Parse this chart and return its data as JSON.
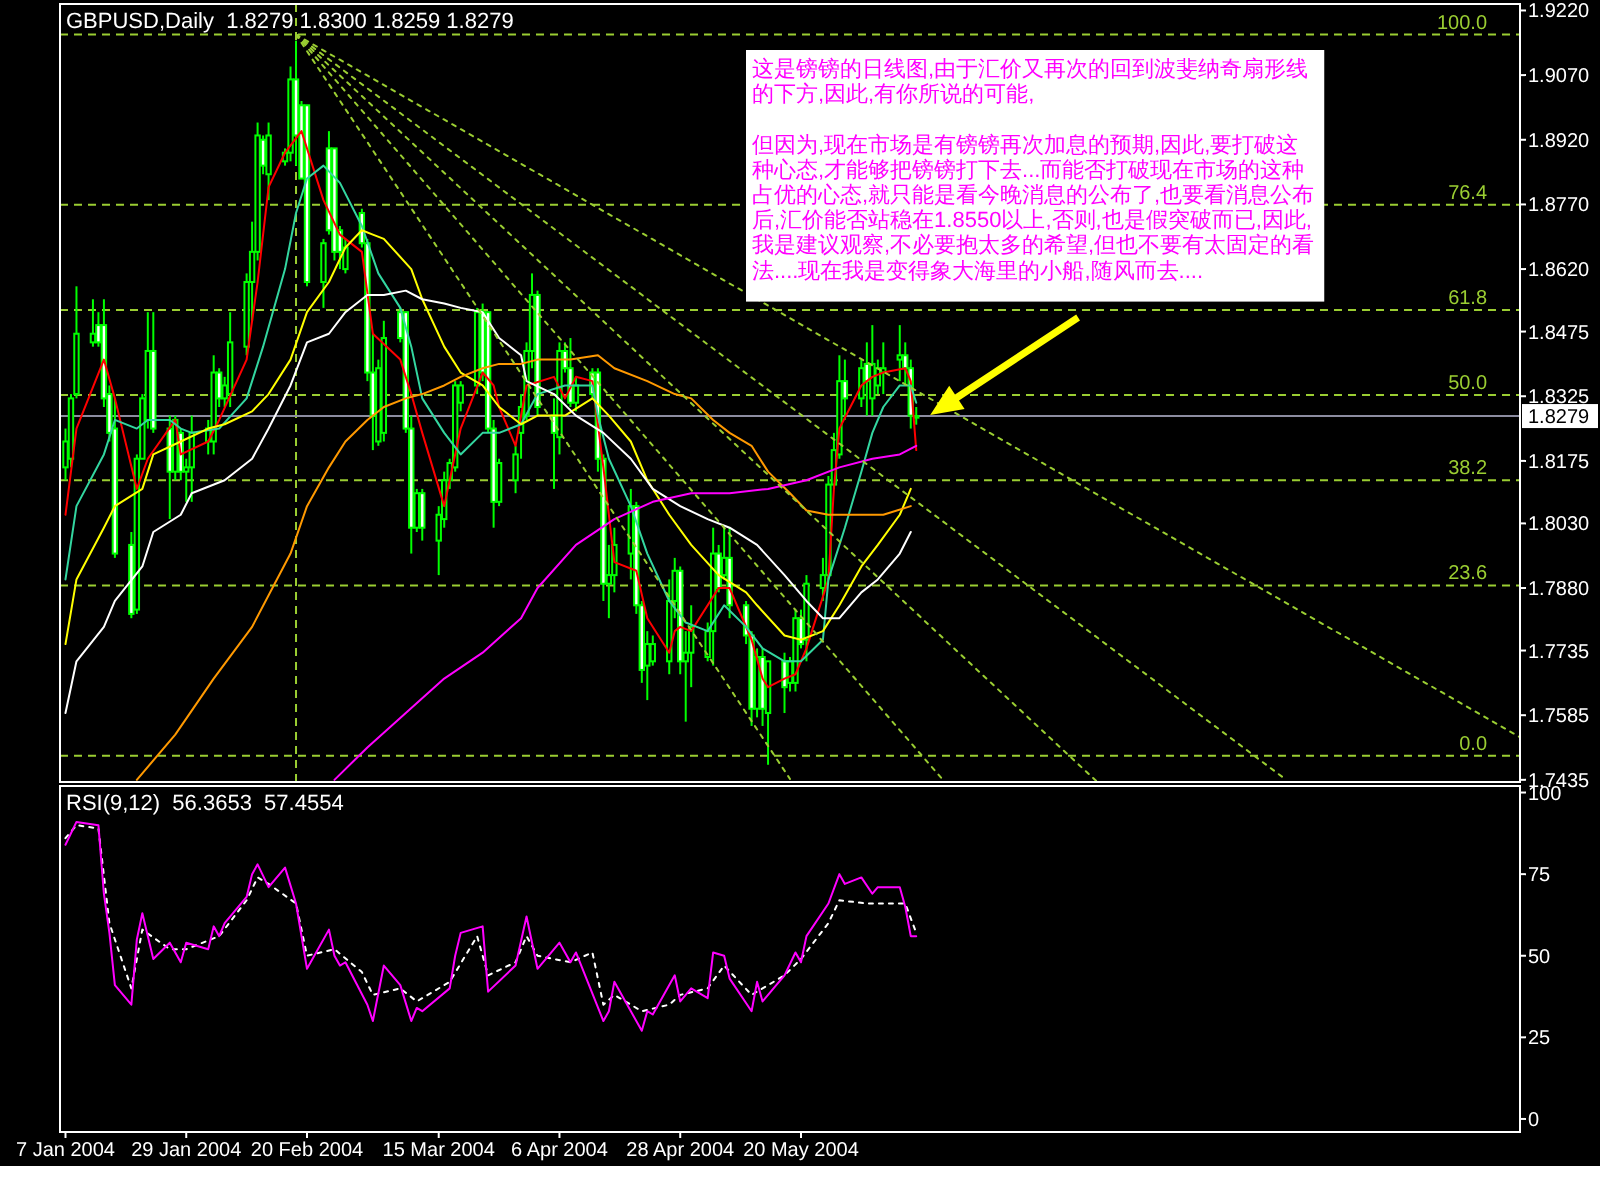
{
  "chart_data": [
    {
      "type": "candlestick",
      "title": "GBPUSD,Daily  1.8279 1.8300 1.8259 1.8279",
      "color": "#00ff00",
      "x": [
        "2004-01-07",
        "2004-01-08",
        "2004-01-09",
        "2004-01-12",
        "2004-01-13",
        "2004-01-14",
        "2004-01-15",
        "2004-01-16",
        "2004-01-19",
        "2004-01-20",
        "2004-01-21",
        "2004-01-22",
        "2004-01-23",
        "2004-01-26",
        "2004-01-27",
        "2004-01-28",
        "2004-01-29",
        "2004-01-30",
        "2004-02-02",
        "2004-02-03",
        "2004-02-04",
        "2004-02-05",
        "2004-02-06",
        "2004-02-09",
        "2004-02-10",
        "2004-02-11",
        "2004-02-12",
        "2004-02-13",
        "2004-02-16",
        "2004-02-17",
        "2004-02-18",
        "2004-02-19",
        "2004-02-20",
        "2004-02-23",
        "2004-02-24",
        "2004-02-25",
        "2004-02-26",
        "2004-02-27",
        "2004-03-01",
        "2004-03-02",
        "2004-03-03",
        "2004-03-04",
        "2004-03-05",
        "2004-03-08",
        "2004-03-09",
        "2004-03-10",
        "2004-03-11",
        "2004-03-12",
        "2004-03-15",
        "2004-03-16",
        "2004-03-17",
        "2004-03-18",
        "2004-03-19",
        "2004-03-22",
        "2004-03-23",
        "2004-03-24",
        "2004-03-25",
        "2004-03-26",
        "2004-03-29",
        "2004-03-30",
        "2004-03-31",
        "2004-04-01",
        "2004-04-02",
        "2004-04-05",
        "2004-04-06",
        "2004-04-07",
        "2004-04-08",
        "2004-04-09",
        "2004-04-12",
        "2004-04-13",
        "2004-04-14",
        "2004-04-15",
        "2004-04-16",
        "2004-04-19",
        "2004-04-20",
        "2004-04-21",
        "2004-04-22",
        "2004-04-23",
        "2004-04-26",
        "2004-04-27",
        "2004-04-28",
        "2004-04-29",
        "2004-04-30",
        "2004-05-03",
        "2004-05-04",
        "2004-05-05",
        "2004-05-06",
        "2004-05-07",
        "2004-05-10",
        "2004-05-11",
        "2004-05-12",
        "2004-05-13",
        "2004-05-14",
        "2004-05-17",
        "2004-05-18",
        "2004-05-19",
        "2004-05-20",
        "2004-05-21",
        "2004-05-24",
        "2004-05-25",
        "2004-05-26",
        "2004-05-27",
        "2004-05-28",
        "2004-05-31",
        "2004-06-01",
        "2004-06-02",
        "2004-06-03",
        "2004-06-04",
        "2004-06-07",
        "2004-06-08",
        "2004-06-09",
        "2004-06-10"
      ],
      "ohlc": [
        [
          1.816,
          1.825,
          1.813,
          1.822
        ],
        [
          1.818,
          1.833,
          1.816,
          1.832
        ],
        [
          1.833,
          1.858,
          1.832,
          1.847
        ],
        [
          1.845,
          1.855,
          1.844,
          1.847
        ],
        [
          1.849,
          1.852,
          1.844,
          1.845
        ],
        [
          1.849,
          1.855,
          1.83,
          1.832
        ],
        [
          1.833,
          1.835,
          1.822,
          1.824
        ],
        [
          1.825,
          1.832,
          1.795,
          1.796
        ],
        [
          1.798,
          1.801,
          1.781,
          1.782
        ],
        [
          1.783,
          1.819,
          1.782,
          1.818
        ],
        [
          1.818,
          1.833,
          1.818,
          1.832
        ],
        [
          1.827,
          1.852,
          1.825,
          1.843
        ],
        [
          1.843,
          1.852,
          1.824,
          1.825
        ],
        [
          1.825,
          1.828,
          1.804,
          1.815
        ],
        [
          1.815,
          1.828,
          1.813,
          1.827
        ],
        [
          1.824,
          1.825,
          1.813,
          1.815
        ],
        [
          1.815,
          1.818,
          1.808,
          1.816
        ],
        [
          1.816,
          1.828,
          1.808,
          1.824
        ],
        [
          1.822,
          1.827,
          1.819,
          1.825
        ],
        [
          1.822,
          1.842,
          1.819,
          1.838
        ],
        [
          1.838,
          1.839,
          1.83,
          1.832
        ],
        [
          1.832,
          1.837,
          1.83,
          1.835
        ],
        [
          1.833,
          1.852,
          1.83,
          1.845
        ],
        [
          1.844,
          1.861,
          1.842,
          1.859
        ],
        [
          1.859,
          1.873,
          1.85,
          1.866
        ],
        [
          1.866,
          1.896,
          1.864,
          1.893
        ],
        [
          1.892,
          1.893,
          1.884,
          1.886
        ],
        [
          1.884,
          1.896,
          1.878,
          1.893
        ],
        [
          1.887,
          1.89,
          1.886,
          1.889
        ],
        [
          1.889,
          1.909,
          1.887,
          1.906
        ],
        [
          1.906,
          1.915,
          1.886,
          1.893
        ],
        [
          1.9,
          1.901,
          1.883,
          1.883
        ],
        [
          1.9,
          1.9,
          1.858,
          1.859
        ],
        [
          1.859,
          1.869,
          1.853,
          1.868
        ],
        [
          1.89,
          1.894,
          1.87,
          1.871
        ],
        [
          1.89,
          1.89,
          1.864,
          1.866
        ],
        [
          1.871,
          1.872,
          1.862,
          1.866
        ],
        [
          1.862,
          1.869,
          1.861,
          1.867
        ],
        [
          1.875,
          1.876,
          1.867,
          1.868
        ],
        [
          1.868,
          1.869,
          1.836,
          1.838
        ],
        [
          1.838,
          1.847,
          1.82,
          1.828
        ],
        [
          1.822,
          1.841,
          1.821,
          1.839
        ],
        [
          1.824,
          1.85,
          1.822,
          1.846
        ],
        [
          1.852,
          1.853,
          1.845,
          1.846
        ],
        [
          1.852,
          1.852,
          1.824,
          1.825
        ],
        [
          1.825,
          1.828,
          1.796,
          1.802
        ],
        [
          1.802,
          1.811,
          1.801,
          1.81
        ],
        [
          1.81,
          1.811,
          1.799,
          1.802
        ],
        [
          1.799,
          1.807,
          1.791,
          1.805
        ],
        [
          1.804,
          1.815,
          1.802,
          1.813
        ],
        [
          1.813,
          1.818,
          1.811,
          1.817
        ],
        [
          1.816,
          1.836,
          1.815,
          1.835
        ],
        [
          1.831,
          1.836,
          1.829,
          1.835
        ],
        [
          1.835,
          1.853,
          1.833,
          1.852
        ],
        [
          1.852,
          1.854,
          1.836,
          1.838
        ],
        [
          1.852,
          1.852,
          1.824,
          1.825
        ],
        [
          1.825,
          1.827,
          1.802,
          1.808
        ],
        [
          1.808,
          1.818,
          1.807,
          1.817
        ],
        [
          1.813,
          1.821,
          1.81,
          1.819
        ],
        [
          1.824,
          1.833,
          1.818,
          1.83
        ],
        [
          1.828,
          1.845,
          1.827,
          1.843
        ],
        [
          1.843,
          1.861,
          1.839,
          1.856
        ],
        [
          1.856,
          1.857,
          1.828,
          1.83
        ],
        [
          1.828,
          1.832,
          1.811,
          1.824
        ],
        [
          1.823,
          1.845,
          1.819,
          1.843
        ],
        [
          1.843,
          1.845,
          1.838,
          1.839
        ],
        [
          1.839,
          1.846,
          1.83,
          1.831
        ],
        [
          1.831,
          1.837,
          1.829,
          1.835
        ],
        [
          1.838,
          1.839,
          1.832,
          1.833
        ],
        [
          1.838,
          1.839,
          1.815,
          1.818
        ],
        [
          1.818,
          1.819,
          1.785,
          1.789
        ],
        [
          1.789,
          1.798,
          1.781,
          1.791
        ],
        [
          1.791,
          1.802,
          1.787,
          1.798
        ],
        [
          1.796,
          1.811,
          1.79,
          1.807
        ],
        [
          1.807,
          1.808,
          1.782,
          1.784
        ],
        [
          1.784,
          1.785,
          1.766,
          1.769
        ],
        [
          1.77,
          1.778,
          1.762,
          1.775
        ],
        [
          1.771,
          1.777,
          1.77,
          1.775
        ],
        [
          1.771,
          1.79,
          1.768,
          1.785
        ],
        [
          1.785,
          1.795,
          1.781,
          1.792
        ],
        [
          1.792,
          1.793,
          1.768,
          1.771
        ],
        [
          1.771,
          1.778,
          1.757,
          1.773
        ],
        [
          1.773,
          1.784,
          1.765,
          1.779
        ],
        [
          1.772,
          1.78,
          1.771,
          1.778
        ],
        [
          1.778,
          1.802,
          1.77,
          1.796
        ],
        [
          1.796,
          1.798,
          1.787,
          1.788
        ],
        [
          1.791,
          1.802,
          1.79,
          1.795
        ],
        [
          1.795,
          1.802,
          1.781,
          1.784
        ],
        [
          1.784,
          1.785,
          1.775,
          1.777
        ],
        [
          1.777,
          1.778,
          1.756,
          1.76
        ],
        [
          1.76,
          1.774,
          1.758,
          1.772
        ],
        [
          1.772,
          1.774,
          1.756,
          1.76
        ],
        [
          1.759,
          1.771,
          1.747,
          1.771
        ],
        [
          1.771,
          1.773,
          1.759,
          1.765
        ],
        [
          1.766,
          1.772,
          1.764,
          1.771
        ],
        [
          1.766,
          1.783,
          1.764,
          1.781
        ],
        [
          1.781,
          1.783,
          1.774,
          1.775
        ],
        [
          1.776,
          1.791,
          1.771,
          1.789
        ],
        [
          1.788,
          1.795,
          1.785,
          1.791
        ],
        [
          1.791,
          1.814,
          1.79,
          1.812
        ],
        [
          1.812,
          1.824,
          1.811,
          1.82
        ],
        [
          1.819,
          1.842,
          1.818,
          1.836
        ],
        [
          1.836,
          1.841,
          1.827,
          1.832
        ],
        [
          1.832,
          1.841,
          1.83,
          1.839
        ],
        [
          1.84,
          1.845,
          1.828,
          1.836
        ],
        [
          1.832,
          1.849,
          1.828,
          1.84
        ],
        [
          1.835,
          1.841,
          1.833,
          1.839
        ],
        [
          1.838,
          1.845,
          1.833,
          1.839
        ],
        [
          1.841,
          1.849,
          1.836,
          1.842
        ],
        [
          1.842,
          1.845,
          1.835,
          1.839
        ],
        [
          1.839,
          1.841,
          1.825,
          1.828
        ],
        [
          1.8279,
          1.83,
          1.8259,
          1.8279
        ]
      ],
      "series": [
        {
          "type": "line",
          "color": "#ff0000",
          "x": [
            "2004-01-07",
            "2004-01-09",
            "2004-01-14",
            "2004-01-16",
            "2004-01-20",
            "2004-01-22",
            "2004-01-27",
            "2004-01-28",
            "2004-02-02",
            "2004-02-04",
            "2004-02-09",
            "2004-02-11",
            "2004-02-13",
            "2004-02-16",
            "2004-02-19",
            "2004-02-23",
            "2004-02-26",
            "2004-03-01",
            "2004-03-03",
            "2004-03-08",
            "2004-03-10",
            "2004-03-12",
            "2004-03-16",
            "2004-03-19",
            "2004-03-23",
            "2004-03-25",
            "2004-03-26",
            "2004-03-29",
            "2004-03-31",
            "2004-04-05",
            "2004-04-07",
            "2004-04-09",
            "2004-04-12",
            "2004-04-14",
            "2004-04-16",
            "2004-04-20",
            "2004-04-22",
            "2004-04-26",
            "2004-04-27",
            "2004-04-28",
            "2004-04-30",
            "2004-05-05",
            "2004-05-07",
            "2004-05-11",
            "2004-05-13",
            "2004-05-14",
            "2004-05-17",
            "2004-05-19",
            "2004-05-21",
            "2004-05-25",
            "2004-05-26",
            "2004-05-27",
            "2004-05-31",
            "2004-06-02",
            "2004-06-04",
            "2004-06-08",
            "2004-06-09",
            "2004-06-10"
          ],
          "values": [
            1.805,
            1.825,
            1.841,
            1.832,
            1.811,
            1.818,
            1.827,
            1.819,
            1.822,
            1.827,
            1.841,
            1.859,
            1.881,
            1.889,
            1.894,
            1.878,
            1.87,
            1.866,
            1.847,
            1.841,
            1.833,
            1.824,
            1.807,
            1.825,
            1.838,
            1.835,
            1.83,
            1.821,
            1.835,
            1.837,
            1.832,
            1.837,
            1.836,
            1.816,
            1.794,
            1.792,
            1.781,
            1.773,
            1.778,
            1.779,
            1.778,
            1.788,
            1.788,
            1.776,
            1.767,
            1.765,
            1.767,
            1.768,
            1.774,
            1.79,
            1.811,
            1.825,
            1.835,
            1.837,
            1.838,
            1.839,
            1.836,
            1.82
          ]
        },
        {
          "type": "line",
          "color": "#33d6a0",
          "x": [
            "2004-01-07",
            "2004-01-09",
            "2004-01-14",
            "2004-01-16",
            "2004-01-20",
            "2004-01-22",
            "2004-01-26",
            "2004-01-28",
            "2004-01-30",
            "2004-02-04",
            "2004-02-09",
            "2004-02-12",
            "2004-02-16",
            "2004-02-18",
            "2004-02-20",
            "2004-02-23",
            "2004-02-26",
            "2004-03-01",
            "2004-03-04",
            "2004-03-08",
            "2004-03-10",
            "2004-03-12",
            "2004-03-16",
            "2004-03-19",
            "2004-03-23",
            "2004-03-26",
            "2004-03-30",
            "2004-04-02",
            "2004-04-07",
            "2004-04-12",
            "2004-04-13",
            "2004-04-15",
            "2004-04-19",
            "2004-04-22",
            "2004-04-26",
            "2004-04-29",
            "2004-05-03",
            "2004-05-06",
            "2004-05-10",
            "2004-05-13",
            "2004-05-17",
            "2004-05-20",
            "2004-05-24",
            "2004-05-25",
            "2004-05-28",
            "2004-05-31",
            "2004-06-02",
            "2004-06-04",
            "2004-06-07",
            "2004-06-09",
            "2004-06-10"
          ],
          "values": [
            1.79,
            1.807,
            1.819,
            1.827,
            1.825,
            1.827,
            1.827,
            1.825,
            1.824,
            1.825,
            1.832,
            1.844,
            1.862,
            1.875,
            1.883,
            1.886,
            1.882,
            1.872,
            1.861,
            1.853,
            1.844,
            1.832,
            1.824,
            1.819,
            1.824,
            1.824,
            1.826,
            1.833,
            1.835,
            1.835,
            1.828,
            1.818,
            1.807,
            1.796,
            1.785,
            1.78,
            1.778,
            1.784,
            1.779,
            1.774,
            1.771,
            1.771,
            1.776,
            1.79,
            1.802,
            1.815,
            1.824,
            1.83,
            1.835,
            1.835,
            1.831
          ]
        },
        {
          "type": "line",
          "color": "#ffff00",
          "x": [
            "2004-01-07",
            "2004-01-09",
            "2004-01-14",
            "2004-01-16",
            "2004-01-21",
            "2004-01-23",
            "2004-01-28",
            "2004-02-02",
            "2004-02-05",
            "2004-02-10",
            "2004-02-13",
            "2004-02-17",
            "2004-02-20",
            "2004-02-24",
            "2004-02-27",
            "2004-03-01",
            "2004-03-03",
            "2004-03-05",
            "2004-03-10",
            "2004-03-12",
            "2004-03-16",
            "2004-03-19",
            "2004-03-23",
            "2004-03-26",
            "2004-03-30",
            "2004-04-02",
            "2004-04-07",
            "2004-04-12",
            "2004-04-15",
            "2004-04-19",
            "2004-04-22",
            "2004-04-26",
            "2004-04-30",
            "2004-05-05",
            "2004-05-10",
            "2004-05-12",
            "2004-05-17",
            "2004-05-20",
            "2004-05-24",
            "2004-05-27",
            "2004-05-31",
            "2004-06-03",
            "2004-06-07",
            "2004-06-09"
          ],
          "values": [
            1.775,
            1.79,
            1.802,
            1.807,
            1.811,
            1.819,
            1.822,
            1.825,
            1.826,
            1.829,
            1.833,
            1.841,
            1.852,
            1.859,
            1.867,
            1.871,
            1.87,
            1.869,
            1.862,
            1.855,
            1.844,
            1.838,
            1.835,
            1.83,
            1.826,
            1.828,
            1.828,
            1.832,
            1.828,
            1.822,
            1.813,
            1.805,
            1.798,
            1.791,
            1.787,
            1.784,
            1.777,
            1.776,
            1.778,
            1.784,
            1.793,
            1.798,
            1.805,
            1.811
          ]
        },
        {
          "type": "line",
          "color": "#ffffff",
          "x": [
            "2004-01-07",
            "2004-01-09",
            "2004-01-14",
            "2004-01-16",
            "2004-01-21",
            "2004-01-23",
            "2004-01-28",
            "2004-01-30",
            "2004-02-05",
            "2004-02-10",
            "2004-02-13",
            "2004-02-17",
            "2004-02-20",
            "2004-02-24",
            "2004-02-27",
            "2004-03-02",
            "2004-03-05",
            "2004-03-09",
            "2004-03-12",
            "2004-03-16",
            "2004-03-19",
            "2004-03-23",
            "2004-03-26",
            "2004-03-30",
            "2004-03-31",
            "2004-04-05",
            "2004-04-09",
            "2004-04-14",
            "2004-04-19",
            "2004-04-23",
            "2004-04-28",
            "2004-05-03",
            "2004-05-07",
            "2004-05-12",
            "2004-05-17",
            "2004-05-21",
            "2004-05-24",
            "2004-05-27",
            "2004-05-31",
            "2004-06-03",
            "2004-06-07",
            "2004-06-09"
          ],
          "values": [
            1.759,
            1.771,
            1.779,
            1.785,
            1.793,
            1.801,
            1.805,
            1.81,
            1.813,
            1.818,
            1.825,
            1.835,
            1.845,
            1.847,
            1.852,
            1.856,
            1.856,
            1.857,
            1.855,
            1.854,
            1.853,
            1.852,
            1.846,
            1.842,
            1.836,
            1.833,
            1.828,
            1.824,
            1.818,
            1.811,
            1.807,
            1.804,
            1.802,
            1.798,
            1.791,
            1.785,
            1.781,
            1.781,
            1.787,
            1.79,
            1.796,
            1.801
          ]
        },
        {
          "type": "line",
          "color": "#ff9900",
          "x": [
            "2004-01-20",
            "2004-01-27",
            "2004-02-03",
            "2004-02-10",
            "2004-02-17",
            "2004-02-20",
            "2004-02-24",
            "2004-02-27",
            "2004-03-02",
            "2004-03-05",
            "2004-03-09",
            "2004-03-12",
            "2004-03-16",
            "2004-03-19",
            "2004-03-23",
            "2004-03-26",
            "2004-03-30",
            "2004-04-02",
            "2004-04-08",
            "2004-04-13",
            "2004-04-16",
            "2004-04-22",
            "2004-04-27",
            "2004-04-30",
            "2004-05-04",
            "2004-05-07",
            "2004-05-11",
            "2004-05-14",
            "2004-05-18",
            "2004-05-21",
            "2004-05-25",
            "2004-05-28",
            "2004-06-01",
            "2004-06-04",
            "2004-06-09"
          ],
          "values": [
            1.7435,
            1.754,
            1.767,
            1.779,
            1.796,
            1.807,
            1.816,
            1.822,
            1.827,
            1.83,
            1.832,
            1.833,
            1.835,
            1.837,
            1.839,
            1.84,
            1.84,
            1.841,
            1.841,
            1.842,
            1.839,
            1.836,
            1.833,
            1.832,
            1.827,
            1.824,
            1.821,
            1.815,
            1.81,
            1.806,
            1.805,
            1.805,
            1.805,
            1.805,
            1.807
          ]
        },
        {
          "type": "line",
          "color": "#ff00ff",
          "x": [
            "2004-02-25",
            "2004-03-02",
            "2004-03-09",
            "2004-03-16",
            "2004-03-23",
            "2004-03-30",
            "2004-04-02",
            "2004-04-09",
            "2004-04-16",
            "2004-04-23",
            "2004-04-30",
            "2004-05-07",
            "2004-05-14",
            "2004-05-21",
            "2004-05-27",
            "2004-06-02",
            "2004-06-07",
            "2004-06-10"
          ],
          "values": [
            1.7435,
            1.751,
            1.759,
            1.767,
            1.773,
            1.781,
            1.788,
            1.798,
            1.804,
            1.808,
            1.81,
            1.81,
            1.811,
            1.813,
            1.816,
            1.818,
            1.819,
            1.821
          ]
        },
        {
          "type": "line",
          "color": "#9acd32",
          "line_style": "dotted",
          "x": [
            "2004-02-18",
            "2004-05-18"
          ],
          "values": [
            1.9164,
            1.7437
          ]
        },
        {
          "type": "line",
          "color": "#9acd32",
          "line_style": "dotted",
          "x": [
            "2004-02-18",
            "2004-06-15"
          ],
          "values": [
            1.9164,
            1.7433
          ]
        },
        {
          "type": "line",
          "color": "#9acd32",
          "line_style": "dotted",
          "x": [
            "2004-02-18",
            "2004-07-13"
          ],
          "values": [
            1.9164,
            1.743
          ]
        },
        {
          "type": "line",
          "color": "#9acd32",
          "line_style": "dotted",
          "x": [
            "2004-02-18",
            "2004-08-16"
          ],
          "values": [
            1.9164,
            1.7439
          ]
        },
        {
          "type": "line",
          "color": "#9acd32",
          "line_style": "dotted",
          "x": [
            "2004-02-18",
            "2004-09-28"
          ],
          "values": [
            1.9164,
            1.7534
          ]
        }
      ],
      "xlim": [
        "2004-01-06",
        "2004-09-28"
      ],
      "ylim": [
        1.743,
        1.9235
      ],
      "yticks": [
        {
          "value": 1.922,
          "label": "1.9220"
        },
        {
          "value": 1.907,
          "label": "1.9070"
        },
        {
          "value": 1.892,
          "label": "1.8920"
        },
        {
          "value": 1.877,
          "label": "1.8770"
        },
        {
          "value": 1.862,
          "label": "1.8620"
        },
        {
          "value": 1.8475,
          "label": "1.8475"
        },
        {
          "value": 1.8325,
          "label": "1.8325"
        },
        {
          "value": 1.8175,
          "label": "1.8175"
        },
        {
          "value": 1.803,
          "label": "1.8030"
        },
        {
          "value": 1.788,
          "label": "1.7880"
        },
        {
          "value": 1.7735,
          "label": "1.7735"
        },
        {
          "value": 1.7585,
          "label": "1.7585"
        },
        {
          "value": 1.7435,
          "label": "1.7435"
        }
      ],
      "tick_labels": "y",
      "ref_lines": [
        {
          "axis": "y",
          "value": 1.9164,
          "color": "#9acd32",
          "line_style": "dashed"
        },
        {
          "axis": "y",
          "value": 1.8769,
          "color": "#9acd32",
          "line_style": "dashed"
        },
        {
          "axis": "y",
          "value": 1.8525,
          "color": "#9acd32",
          "line_style": "dashed"
        },
        {
          "axis": "y",
          "value": 1.8328,
          "color": "#9acd32",
          "line_style": "dashed"
        },
        {
          "axis": "y",
          "value": 1.813,
          "color": "#9acd32",
          "line_style": "dashed"
        },
        {
          "axis": "y",
          "value": 1.7886,
          "color": "#9acd32",
          "line_style": "dashed"
        },
        {
          "axis": "y",
          "value": 1.7491,
          "color": "#9acd32",
          "line_style": "dashed"
        },
        {
          "axis": "x",
          "value": "2004-02-18",
          "color": "#9acd32",
          "line_style": "dashed"
        },
        {
          "axis": "y",
          "value": 1.8279,
          "label": "1.8279",
          "color": "#8c8ca0",
          "line_style": "solid"
        }
      ],
      "annotations": [
        "这是镑镑的日线图,由于汇价又再次的回到波斐纳奇扇形线的下方,因此,有你所说的可能,",
        "但因为,现在市场是有镑镑再次加息的预期,因此,要打破这种心态,才能够把镑镑打下去...而能否打破现在市场的这种占优的心态,就只能是看今晚消息的公布了,也要看消息公布后,汇价能否站稳在1.8550以上,否则,也是假突破而已,因此,我是建议观察,不必要抱太多的希望,但也不要有太固定的看法....现在我是变得象大海里的小船,随风而去....",
        {
          "text": "100.0",
          "x": "2004-09-22",
          "y": 1.9164
        },
        {
          "text": "76.4",
          "x": "2004-09-22",
          "y": 1.8769
        },
        {
          "text": "61.8",
          "x": "2004-09-22",
          "y": 1.8525
        },
        {
          "text": "50.0",
          "x": "2004-09-22",
          "y": 1.8328
        },
        {
          "text": "38.2",
          "x": "2004-09-22",
          "y": 1.813
        },
        {
          "text": "23.6",
          "x": "2004-09-22",
          "y": 1.7886
        },
        {
          "text": "0.0",
          "x": "2004-09-22",
          "y": 1.7491
        }
      ]
    },
    {
      "type": "line",
      "title": "RSI(9,12)  56.3653  57.4554",
      "series": [
        {
          "color": "#ffffff",
          "line_style": "dotted",
          "x": [
            "2004-01-07",
            "2004-01-09",
            "2004-01-13",
            "2004-01-15",
            "2004-01-19",
            "2004-01-21",
            "2004-01-26",
            "2004-01-29",
            "2004-02-04",
            "2004-02-09",
            "2004-02-11",
            "2004-02-13",
            "2004-02-18",
            "2004-02-20",
            "2004-02-25",
            "2004-03-01",
            "2004-03-03",
            "2004-03-08",
            "2004-03-11",
            "2004-03-17",
            "2004-03-22",
            "2004-03-24",
            "2004-03-29",
            "2004-03-31",
            "2004-04-02",
            "2004-04-08",
            "2004-04-12",
            "2004-04-14",
            "2004-04-16",
            "2004-04-21",
            "2004-04-26",
            "2004-04-28",
            "2004-05-03",
            "2004-05-06",
            "2004-05-11",
            "2004-05-13",
            "2004-05-17",
            "2004-05-20",
            "2004-05-25",
            "2004-05-27",
            "2004-06-01",
            "2004-06-04",
            "2004-06-08",
            "2004-06-10"
          ],
          "values": [
            86,
            90,
            89,
            60,
            40,
            58,
            52,
            52,
            56,
            67,
            74,
            72,
            66,
            50,
            52,
            45,
            38,
            40,
            36,
            42,
            56,
            44,
            48,
            56,
            50,
            48,
            51,
            35,
            38,
            33,
            35,
            38,
            40,
            47,
            38,
            40,
            44,
            49,
            60,
            67,
            66,
            66,
            66,
            57
          ]
        },
        {
          "color": "#ff00ff",
          "x": [
            "2004-01-07",
            "2004-01-09",
            "2004-01-13",
            "2004-01-14",
            "2004-01-15",
            "2004-01-16",
            "2004-01-19",
            "2004-01-20",
            "2004-01-21",
            "2004-01-23",
            "2004-01-26",
            "2004-01-28",
            "2004-01-29",
            "2004-02-02",
            "2004-02-03",
            "2004-02-04",
            "2004-02-05",
            "2004-02-09",
            "2004-02-10",
            "2004-02-11",
            "2004-02-13",
            "2004-02-16",
            "2004-02-18",
            "2004-02-20",
            "2004-02-24",
            "2004-02-25",
            "2004-02-26",
            "2004-02-27",
            "2004-03-02",
            "2004-03-03",
            "2004-03-05",
            "2004-03-08",
            "2004-03-10",
            "2004-03-11",
            "2004-03-12",
            "2004-03-17",
            "2004-03-18",
            "2004-03-19",
            "2004-03-23",
            "2004-03-24",
            "2004-03-29",
            "2004-03-31",
            "2004-04-02",
            "2004-04-06",
            "2004-04-08",
            "2004-04-09",
            "2004-04-14",
            "2004-04-15",
            "2004-04-16",
            "2004-04-21",
            "2004-04-22",
            "2004-04-23",
            "2004-04-27",
            "2004-04-28",
            "2004-04-30",
            "2004-05-03",
            "2004-05-04",
            "2004-05-06",
            "2004-05-07",
            "2004-05-11",
            "2004-05-12",
            "2004-05-13",
            "2004-05-17",
            "2004-05-19",
            "2004-05-20",
            "2004-05-21",
            "2004-05-25",
            "2004-05-27",
            "2004-05-28",
            "2004-05-31",
            "2004-06-02",
            "2004-06-03",
            "2004-06-07",
            "2004-06-08",
            "2004-06-09",
            "2004-06-10"
          ],
          "values": [
            84,
            91,
            90,
            69,
            57,
            41,
            35,
            55,
            63,
            49,
            54,
            48,
            54,
            52,
            59,
            56,
            60,
            68,
            75,
            78,
            71,
            77,
            66,
            46,
            58,
            50,
            47,
            48,
            35,
            30,
            47,
            41,
            30,
            34,
            33,
            40,
            50,
            57,
            59,
            39,
            47,
            62,
            46,
            54,
            48,
            51,
            30,
            33,
            42,
            27,
            33,
            32,
            44,
            36,
            40,
            37,
            51,
            50,
            43,
            33,
            42,
            36,
            44,
            51,
            48,
            56,
            66,
            75,
            72,
            74,
            69,
            71,
            71,
            65,
            56,
            56
          ]
        }
      ],
      "xlim": [
        "2004-01-06",
        "2004-09-28"
      ],
      "xticks": [
        {
          "value": "2004-01-07",
          "label": "7 Jan 2004"
        },
        {
          "value": "2004-01-29",
          "label": "29 Jan 2004"
        },
        {
          "value": "2004-02-20",
          "label": "20 Feb 2004"
        },
        {
          "value": "2004-03-15",
          "label": "15 Mar 2004"
        },
        {
          "value": "2004-04-06",
          "label": "6 Apr 2004"
        },
        {
          "value": "2004-04-28",
          "label": "28 Apr 2004"
        },
        {
          "value": "2004-05-20",
          "label": "20 May 2004"
        }
      ],
      "ylim": [
        -4,
        102
      ],
      "yticks": [
        0,
        25,
        50,
        75,
        100
      ]
    }
  ]
}
